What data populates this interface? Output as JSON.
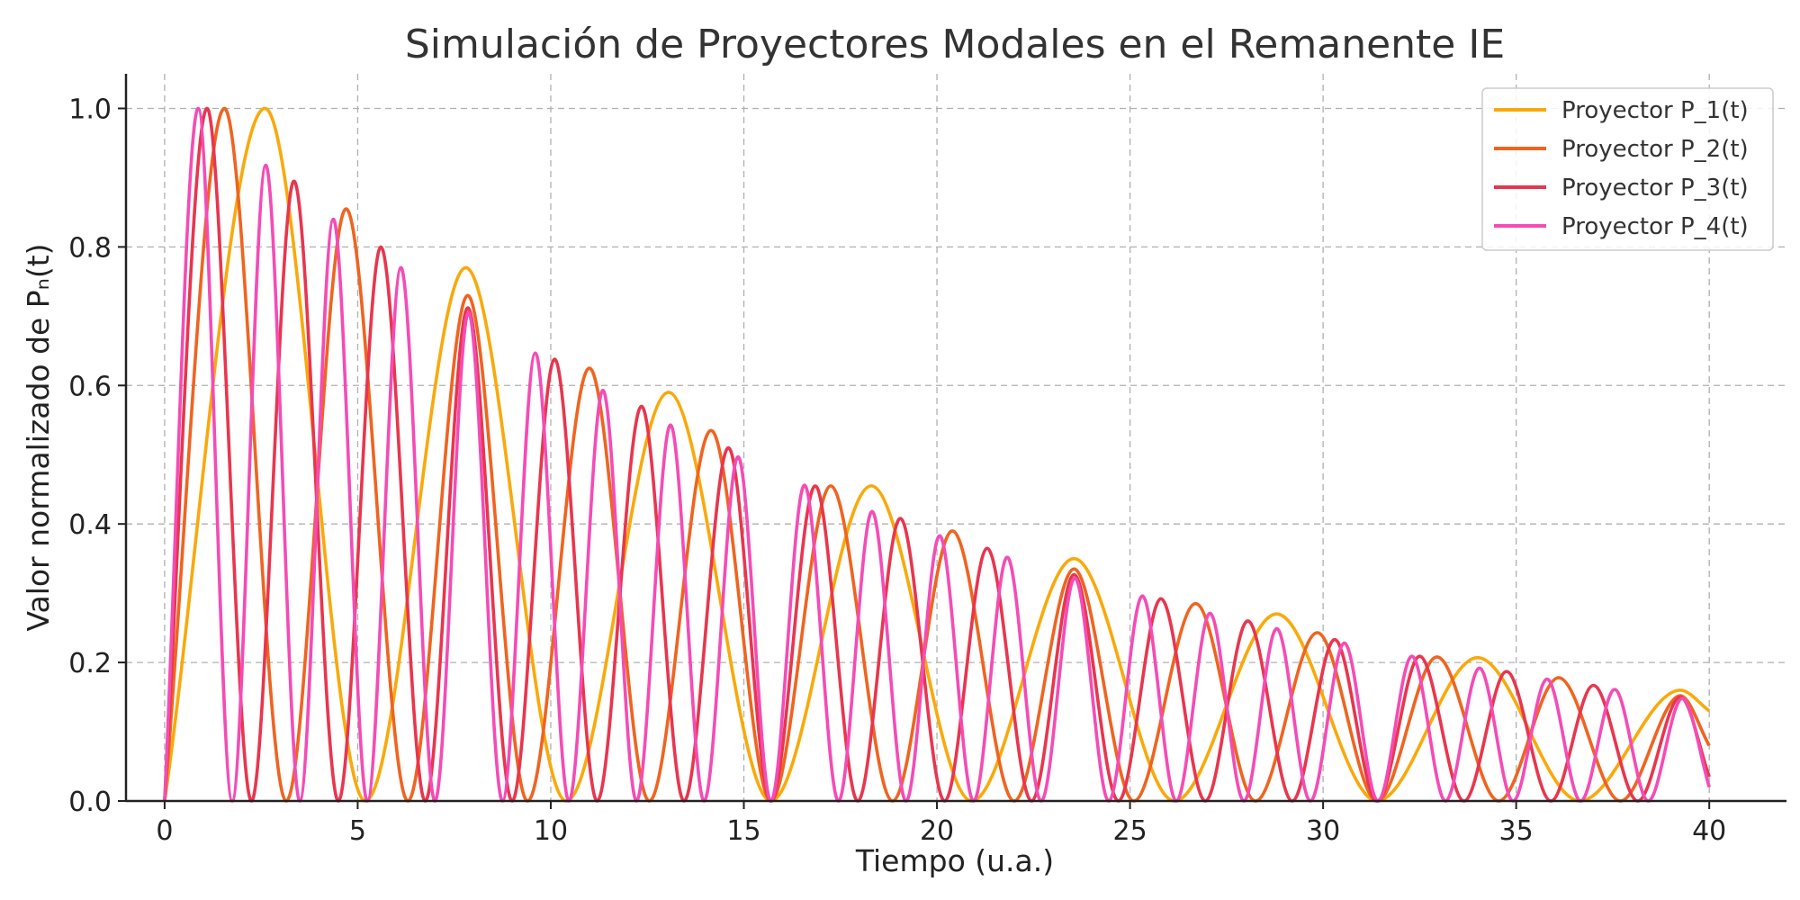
{
  "chart_data": {
    "type": "line",
    "title": "Simulación de Proyectores Modales en el Remanente IE",
    "xlabel": "Tiempo (u.a.)",
    "ylabel": "Valor normalizado de Pₙ(t)",
    "xlim": [
      -1.0,
      42.0
    ],
    "ylim": [
      0.0,
      1.05
    ],
    "xticks": [
      0,
      5,
      10,
      15,
      20,
      25,
      30,
      35,
      40
    ],
    "xtick_labels": [
      "0",
      "5",
      "10",
      "15",
      "20",
      "25",
      "30",
      "35",
      "40"
    ],
    "yticks": [
      0.0,
      0.2,
      0.4,
      0.6,
      0.8,
      1.0
    ],
    "ytick_labels": [
      "0.0",
      "0.2",
      "0.4",
      "0.6",
      "0.8",
      "1.0"
    ],
    "grid": true,
    "legend_position": "top-right",
    "series": [
      {
        "name": "Proyector P_1(t)",
        "color": "#F9A90B",
        "points": [
          [
            0,
            0
          ],
          [
            2.6,
            1.0
          ],
          [
            5.2,
            0
          ],
          [
            7.8,
            0.77
          ],
          [
            10.4,
            0
          ],
          [
            13.05,
            0.59
          ],
          [
            15.7,
            0
          ],
          [
            18.3,
            0.455
          ],
          [
            20.9,
            0
          ],
          [
            23.55,
            0.35
          ],
          [
            26.15,
            0
          ],
          [
            28.8,
            0.27
          ],
          [
            31.4,
            0
          ],
          [
            34.0,
            0.207
          ],
          [
            36.65,
            0
          ],
          [
            39.25,
            0.16
          ],
          [
            40,
            0.13
          ]
        ]
      },
      {
        "name": "Proyector P_2(t)",
        "color": "#EF6420",
        "points": [
          [
            0,
            0
          ],
          [
            1.55,
            1.0
          ],
          [
            3.15,
            0
          ],
          [
            4.7,
            0.855
          ],
          [
            6.3,
            0
          ],
          [
            7.85,
            0.73
          ],
          [
            9.4,
            0
          ],
          [
            11.0,
            0.625
          ],
          [
            12.55,
            0
          ],
          [
            14.15,
            0.535
          ],
          [
            15.7,
            0
          ],
          [
            17.25,
            0.455
          ],
          [
            18.85,
            0
          ],
          [
            20.4,
            0.39
          ],
          [
            22.0,
            0
          ],
          [
            23.55,
            0.335
          ],
          [
            25.1,
            0
          ],
          [
            26.7,
            0.285
          ],
          [
            28.25,
            0
          ],
          [
            29.85,
            0.243
          ],
          [
            31.4,
            0
          ],
          [
            32.95,
            0.208
          ],
          [
            34.55,
            0
          ],
          [
            36.1,
            0.178
          ],
          [
            37.7,
            0
          ],
          [
            39.25,
            0.152
          ],
          [
            40,
            0.08
          ]
        ]
      },
      {
        "name": "Proyector P_3(t)",
        "color": "#E8364E",
        "points": [
          [
            0,
            0
          ],
          [
            1.1,
            1.0
          ],
          [
            2.25,
            0
          ],
          [
            3.35,
            0.895
          ],
          [
            4.5,
            0
          ],
          [
            5.6,
            0.8
          ],
          [
            6.75,
            0
          ],
          [
            7.85,
            0.712
          ],
          [
            9.0,
            0
          ],
          [
            10.1,
            0.638
          ],
          [
            11.2,
            0
          ],
          [
            12.35,
            0.57
          ],
          [
            13.45,
            0
          ],
          [
            14.6,
            0.51
          ],
          [
            15.7,
            0
          ],
          [
            16.85,
            0.455
          ],
          [
            17.95,
            0
          ],
          [
            19.05,
            0.408
          ],
          [
            20.2,
            0
          ],
          [
            21.3,
            0.365
          ],
          [
            22.45,
            0
          ],
          [
            23.55,
            0.327
          ],
          [
            24.7,
            0
          ],
          [
            25.8,
            0.292
          ],
          [
            26.95,
            0
          ],
          [
            28.05,
            0.26
          ],
          [
            29.2,
            0
          ],
          [
            30.3,
            0.233
          ],
          [
            31.4,
            0
          ],
          [
            32.5,
            0.209
          ],
          [
            33.65,
            0
          ],
          [
            34.75,
            0.187
          ],
          [
            35.9,
            0
          ],
          [
            37.0,
            0.167
          ],
          [
            38.15,
            0
          ],
          [
            39.25,
            0.15
          ],
          [
            40,
            0.035
          ]
        ]
      },
      {
        "name": "Proyector P_4(t)",
        "color": "#F44CB5",
        "points": [
          [
            0,
            0
          ],
          [
            0.87,
            1.0
          ],
          [
            1.75,
            0
          ],
          [
            2.62,
            0.918
          ],
          [
            3.5,
            0
          ],
          [
            4.37,
            0.84
          ],
          [
            5.25,
            0
          ],
          [
            6.12,
            0.77
          ],
          [
            7.0,
            0
          ],
          [
            7.87,
            0.705
          ],
          [
            8.75,
            0
          ],
          [
            9.6,
            0.647
          ],
          [
            10.47,
            0
          ],
          [
            11.35,
            0.593
          ],
          [
            12.22,
            0
          ],
          [
            13.1,
            0.543
          ],
          [
            13.97,
            0
          ],
          [
            14.85,
            0.497
          ],
          [
            15.7,
            0
          ],
          [
            16.57,
            0.456
          ],
          [
            17.45,
            0
          ],
          [
            18.32,
            0.418
          ],
          [
            19.2,
            0
          ],
          [
            20.07,
            0.383
          ],
          [
            20.95,
            0
          ],
          [
            21.82,
            0.352
          ],
          [
            22.7,
            0
          ],
          [
            23.57,
            0.322
          ],
          [
            24.45,
            0
          ],
          [
            25.32,
            0.296
          ],
          [
            26.2,
            0
          ],
          [
            27.07,
            0.271
          ],
          [
            27.95,
            0
          ],
          [
            28.8,
            0.249
          ],
          [
            29.67,
            0
          ],
          [
            30.55,
            0.228
          ],
          [
            31.42,
            0
          ],
          [
            32.3,
            0.209
          ],
          [
            33.17,
            0
          ],
          [
            34.05,
            0.192
          ],
          [
            34.92,
            0
          ],
          [
            35.8,
            0.176
          ],
          [
            36.67,
            0
          ],
          [
            37.55,
            0.161
          ],
          [
            38.42,
            0
          ],
          [
            39.3,
            0.148
          ],
          [
            40,
            0.02
          ]
        ]
      }
    ]
  }
}
